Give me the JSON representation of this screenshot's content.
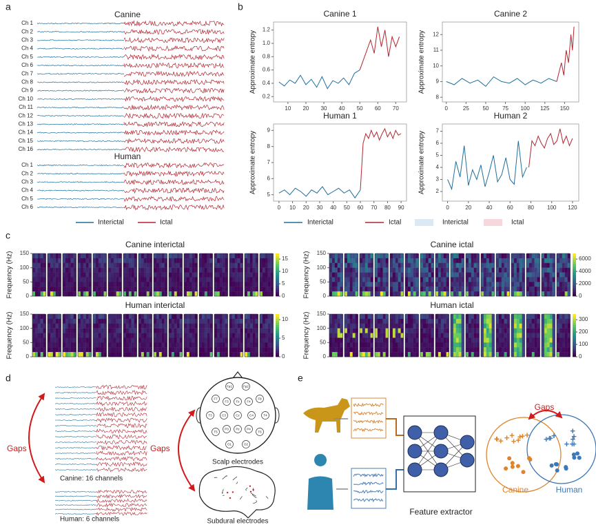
{
  "panel_labels": [
    "a",
    "b",
    "c",
    "d",
    "e"
  ],
  "panel_a": {
    "groups": [
      {
        "title": "Canine",
        "channels": [
          "Ch 1",
          "Ch 2",
          "Ch 3",
          "Ch 4",
          "Ch 5",
          "Ch 6",
          "Ch 7",
          "Ch 8",
          "Ch 9",
          "Ch 10",
          "Ch 11",
          "Ch 12",
          "Ch 13",
          "Ch 14",
          "Ch 15",
          "Ch 16"
        ]
      },
      {
        "title": "Human",
        "channels": [
          "Ch 1",
          "Ch 2",
          "Ch 3",
          "Ch 4",
          "Ch 5",
          "Ch 6"
        ]
      }
    ],
    "legend": [
      {
        "name": "Interictal",
        "color": "#1f6e9c"
      },
      {
        "name": "Ictal",
        "color": "#b2242f"
      }
    ]
  },
  "chart_data": [
    {
      "type": "line",
      "title": "Canine 1",
      "ylabel": "Approximate entropy",
      "xlim": [
        2,
        76
      ],
      "xticks": [
        10,
        20,
        30,
        40,
        50,
        60,
        70
      ],
      "ylim": [
        0.12,
        1.32
      ],
      "yticks": [
        0.2,
        0.4,
        0.6,
        0.8,
        {
          "value": 1.0,
          "label": "1.0"
        },
        1.2
      ],
      "series": [
        {
          "name": "Interictal",
          "color": "#1f6e9c",
          "x": [
            5,
            8,
            11,
            14,
            17,
            20,
            23,
            26,
            29,
            32,
            35,
            38,
            41,
            44,
            47,
            50
          ],
          "values": [
            0.42,
            0.36,
            0.45,
            0.4,
            0.52,
            0.38,
            0.46,
            0.34,
            0.5,
            0.32,
            0.44,
            0.4,
            0.48,
            0.38,
            0.55,
            0.6
          ]
        },
        {
          "name": "Ictal",
          "color": "#b2242f",
          "x": [
            50,
            52,
            54,
            56,
            58,
            60,
            62,
            64,
            66,
            68,
            70,
            72
          ],
          "values": [
            0.6,
            0.75,
            0.9,
            1.05,
            0.85,
            1.25,
            0.95,
            1.2,
            0.8,
            1.1,
            0.95,
            1.1
          ]
        }
      ]
    },
    {
      "type": "line",
      "title": "Canine 2",
      "ylabel": "Approximate entropy",
      "xlim": [
        -5,
        168
      ],
      "xticks": [
        0,
        25,
        50,
        75,
        100,
        125,
        150
      ],
      "ylim": [
        7.7,
        12.8
      ],
      "yticks": [
        8,
        9,
        10,
        11,
        12
      ],
      "series": [
        {
          "name": "Interictal",
          "color": "#1f6e9c",
          "x": [
            0,
            10,
            20,
            30,
            40,
            50,
            60,
            70,
            80,
            90,
            100,
            110,
            120,
            130,
            140
          ],
          "values": [
            9.0,
            8.8,
            9.2,
            8.9,
            9.1,
            8.7,
            9.3,
            9.0,
            8.9,
            9.2,
            8.8,
            9.1,
            8.9,
            9.2,
            9.0
          ]
        },
        {
          "name": "Ictal",
          "color": "#b2242f",
          "x": [
            140,
            143,
            146,
            149,
            152,
            155,
            158,
            160,
            162
          ],
          "values": [
            9.0,
            9.6,
            10.2,
            9.4,
            11.0,
            10.2,
            12.0,
            11.0,
            12.5
          ]
        }
      ]
    },
    {
      "type": "line",
      "title": "Human 1",
      "ylabel": "Approximate entropy",
      "xlim": [
        -4,
        94
      ],
      "xticks": [
        0,
        10,
        20,
        30,
        40,
        50,
        60,
        70,
        80,
        90
      ],
      "ylim": [
        4.6,
        9.4
      ],
      "yticks": [
        5,
        6,
        7,
        8,
        9
      ],
      "series": [
        {
          "name": "Interictal",
          "color": "#1f6e9c",
          "x": [
            0,
            4,
            8,
            12,
            16,
            20,
            24,
            28,
            32,
            36,
            40,
            44,
            48,
            52,
            56,
            60
          ],
          "values": [
            5.1,
            5.3,
            5.0,
            5.4,
            5.2,
            4.9,
            5.3,
            5.1,
            5.5,
            5.0,
            5.2,
            5.4,
            5.1,
            5.3,
            4.8,
            5.3
          ]
        },
        {
          "name": "Ictal",
          "color": "#b2242f",
          "x": [
            60,
            62,
            64,
            66,
            68,
            70,
            72,
            74,
            76,
            78,
            80,
            82,
            84,
            86,
            88,
            90
          ],
          "values": [
            5.3,
            8.2,
            8.8,
            8.5,
            9.0,
            8.6,
            8.9,
            8.4,
            8.8,
            9.1,
            8.6,
            8.9,
            8.5,
            9.0,
            8.7,
            8.8
          ]
        }
      ]
    },
    {
      "type": "line",
      "title": "Human 2",
      "ylabel": "Approximate entropy",
      "xlim": [
        -5,
        126
      ],
      "xticks": [
        0,
        20,
        40,
        60,
        80,
        100,
        120
      ],
      "ylim": [
        1.2,
        7.6
      ],
      "yticks": [
        2,
        3,
        4,
        5,
        6,
        7
      ],
      "series": [
        {
          "name": "Interictal",
          "color": "#1f6e9c",
          "x": [
            0,
            4,
            8,
            12,
            16,
            20,
            24,
            28,
            32,
            36,
            40,
            44,
            48,
            52,
            56,
            60,
            64,
            68,
            72,
            76
          ],
          "values": [
            3.0,
            2.2,
            4.5,
            3.2,
            5.8,
            2.5,
            3.8,
            3.0,
            4.2,
            2.4,
            3.6,
            5.0,
            2.8,
            3.4,
            4.8,
            3.0,
            2.6,
            6.2,
            3.2,
            4.0
          ]
        },
        {
          "name": "Ictal",
          "color": "#b2242f",
          "x": [
            78,
            81,
            84,
            87,
            90,
            93,
            96,
            99,
            102,
            105,
            108,
            111,
            114,
            117,
            120
          ],
          "values": [
            4.0,
            6.2,
            5.8,
            6.6,
            6.0,
            5.6,
            6.4,
            6.8,
            5.9,
            6.2,
            7.2,
            6.0,
            6.6,
            5.8,
            6.4
          ]
        }
      ]
    }
  ],
  "panel_b_legend": [
    {
      "name": "Interictal",
      "color": "#1f6e9c"
    },
    {
      "name": "Ictal",
      "color": "#b2242f"
    },
    {
      "name": "Interictal",
      "color": "#dbe9f4"
    },
    {
      "name": "Ictal",
      "color": "#f6d8dc"
    }
  ],
  "panel_c": {
    "ylabel": "Frequency (Hz)",
    "yticks": [
      0,
      50,
      100,
      150
    ],
    "plots": [
      {
        "title": "Canine interictal",
        "cbar_ticks": [
          0,
          5,
          10,
          15
        ]
      },
      {
        "title": "Canine ictal",
        "cbar_ticks": [
          0,
          2000,
          4000,
          6000
        ]
      },
      {
        "title": "Human interictal",
        "cbar_ticks": [
          0,
          5,
          10
        ]
      },
      {
        "title": "Human ictal",
        "cbar_ticks": [
          0,
          100,
          200,
          300
        ]
      }
    ]
  },
  "panel_d": {
    "gaps": "Gaps",
    "canine": "Canine: 16 channels",
    "human": "Human: 6 channels",
    "scalp": "Scalp electrodes",
    "subdural": "Subdural electrodes",
    "electrodes": [
      "Fp1",
      "Fp2",
      "F7",
      "F3",
      "Fz",
      "F4",
      "F8",
      "T3",
      "C3",
      "Cz",
      "C4",
      "T4",
      "T5",
      "P3",
      "Pz",
      "P4",
      "T6",
      "O1",
      "O2"
    ]
  },
  "panel_e": {
    "gaps": "Gaps",
    "extractor": "Feature extractor",
    "canine": "Canine",
    "human": "Human"
  }
}
